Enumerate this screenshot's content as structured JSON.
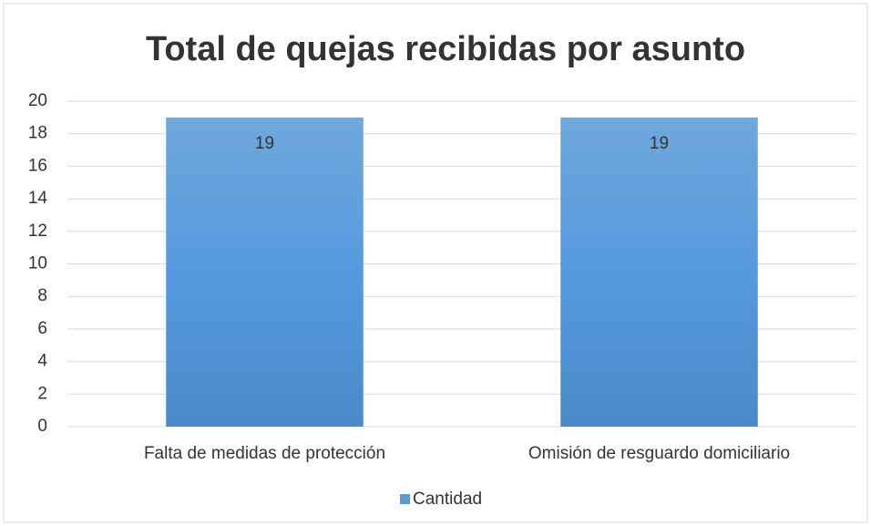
{
  "chart_data": {
    "type": "bar",
    "title": "Total de quejas recibidas por asunto",
    "categories": [
      "Falta de medidas de protección",
      "Omisión de resguardo domiciliario"
    ],
    "series": [
      {
        "name": "Cantidad",
        "color": "#5b9bd5",
        "values": [
          19,
          19
        ]
      }
    ],
    "ylim": [
      0,
      20
    ],
    "yticks": [
      0,
      2,
      4,
      6,
      8,
      10,
      12,
      14,
      16,
      18,
      20
    ],
    "grid": true,
    "legend": "bottom"
  }
}
